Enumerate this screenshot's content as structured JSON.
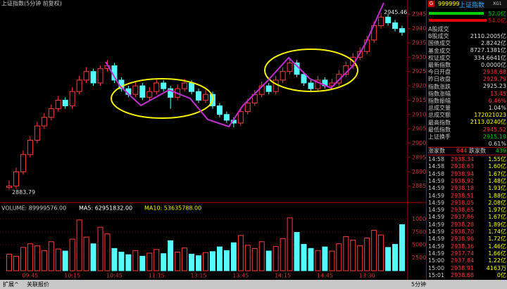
{
  "header": {
    "title": "上证指数(5分钟 前复权)"
  },
  "chart_data": [
    {
      "type": "candlestick",
      "open": [
        2884.5,
        2885,
        2890,
        2896,
        2901,
        2906,
        2909,
        2912,
        2915,
        2913,
        2918,
        2922,
        2925,
        2921,
        2926,
        2927,
        2922,
        2919,
        2917,
        2920,
        2916,
        2918,
        2921,
        2919,
        2916,
        2919,
        2921,
        2918,
        2915,
        2917,
        2913,
        2910,
        2908,
        2907,
        2911,
        2914,
        2917,
        2920,
        2918,
        2922,
        2925,
        2928,
        2924,
        2921,
        2919,
        2922,
        2920,
        2921,
        2924,
        2927,
        2930,
        2932,
        2936,
        2941,
        2944,
        2942,
        2940
      ],
      "high": [
        2887,
        2891.5,
        2897.5,
        2902.5,
        2907.5,
        2910.5,
        2913.5,
        2916.5,
        2916,
        2919.5,
        2923.5,
        2926.5,
        2926,
        2927,
        2929,
        2928,
        2923,
        2920,
        2921.5,
        2921,
        2919.5,
        2922.5,
        2922,
        2920,
        2920.5,
        2922.5,
        2922,
        2919,
        2918.5,
        2918,
        2914,
        2911,
        2909,
        2912.5,
        2915.5,
        2918.5,
        2921.5,
        2921,
        2923.5,
        2926.5,
        2929.5,
        2929,
        2925,
        2922,
        2923.5,
        2923,
        2922.5,
        2925.5,
        2928.5,
        2931.5,
        2933.5,
        2937.5,
        2942.5,
        2945.46,
        2945,
        2943,
        2941
      ],
      "low": [
        2883.79,
        2884,
        2889,
        2895,
        2900,
        2905,
        2908,
        2911,
        2912,
        2912,
        2917,
        2921,
        2920,
        2920,
        2925,
        2921,
        2918,
        2916,
        2916,
        2915,
        2915,
        2917,
        2918,
        2912,
        2915,
        2918,
        2917,
        2914,
        2914,
        2912,
        2909,
        2907,
        2905.5,
        2906,
        2910,
        2913,
        2916,
        2917,
        2917,
        2921,
        2924,
        2923,
        2920,
        2918,
        2918,
        2919,
        2919,
        2920,
        2923,
        2926,
        2929,
        2931,
        2935,
        2940,
        2941,
        2939,
        2937.5
      ],
      "close": [
        2885,
        2890,
        2896,
        2901,
        2906,
        2909,
        2912,
        2915,
        2913,
        2918,
        2922,
        2925,
        2921,
        2926,
        2927,
        2922,
        2919,
        2917,
        2920,
        2916,
        2918,
        2921,
        2919,
        2916,
        2919,
        2921,
        2918,
        2915,
        2917,
        2913,
        2910,
        2908,
        2907,
        2911,
        2914,
        2917,
        2920,
        2918,
        2922,
        2925,
        2928,
        2924,
        2921,
        2919,
        2922,
        2920,
        2921,
        2924,
        2927,
        2930,
        2932,
        2936,
        2941,
        2944,
        2942,
        2940,
        2938.68
      ],
      "ylim": [
        2880,
        2948
      ],
      "yticks": [
        2885,
        2890,
        2895,
        2900,
        2905,
        2910,
        2915,
        2920,
        2925,
        2930,
        2935,
        2940,
        2945
      ],
      "colors": {
        "up": "#ff3c3c",
        "down": "#54fcfc"
      },
      "annotations": [
        {
          "value": 2945.46,
          "label": "2945.46"
        },
        {
          "value": 2883.79,
          "label": "2883.79"
        }
      ]
    },
    {
      "type": "bar",
      "title": "VOLUME: 89999576.00",
      "ma5_label": "MA5: 62951832.00",
      "ma10_label": "MA10: 53635788.00",
      "values": [
        3200,
        2800,
        4500,
        5200,
        4800,
        3900,
        5600,
        4200,
        3800,
        6100,
        9800,
        6500,
        5200,
        8400,
        7100,
        4300,
        3600,
        3100,
        3900,
        2800,
        3400,
        4100,
        3300,
        5800,
        3600,
        4400,
        3200,
        2900,
        3500,
        3700,
        4600,
        3900,
        5400,
        6800,
        4900,
        4300,
        5600,
        3800,
        4700,
        6200,
        10200,
        7400,
        5100,
        4300,
        3900,
        4600,
        3800,
        5200,
        6600,
        5900,
        4800,
        6300,
        7800,
        6900,
        4500,
        5100,
        8900
      ],
      "categories": [
        null,
        null,
        null,
        "09:45",
        null,
        null,
        null,
        null,
        null,
        "10:15",
        null,
        null,
        null,
        null,
        null,
        "10:45",
        null,
        null,
        null,
        null,
        null,
        "11:15",
        null,
        null,
        null,
        null,
        null,
        "13:15",
        null,
        null,
        null,
        null,
        null,
        "13:45",
        null,
        null,
        null,
        null,
        null,
        "14:15",
        null,
        null,
        null,
        null,
        null,
        "14:45",
        null,
        null,
        null,
        null,
        null,
        "13:30",
        null,
        null,
        null,
        null,
        null
      ],
      "ylim": [
        0,
        11000
      ],
      "yticks": [
        2500,
        5000,
        7500,
        10000
      ],
      "grid": true
    }
  ],
  "quote": {
    "code": "999999",
    "name": "上证指数",
    "tag": "XG1",
    "icon": "G",
    "buy_bar": "52.0亿",
    "sell_bar": "54.0亿",
    "stats": [
      {
        "label": "A股成交",
        "value": "2110.2005亿"
      },
      {
        "label": "B股成交",
        "value": "2.8242亿"
      },
      {
        "label": "国债成交",
        "value": "8727.1381亿"
      },
      {
        "label": "基金成交",
        "value": "334.6641亿"
      },
      {
        "label": "权证成交",
        "value": "0.0000亿"
      },
      {
        "label": "最新指数",
        "value": "2938.68"
      },
      {
        "label": "今日开盘",
        "value": "2929.79"
      },
      {
        "label": "昨日收盘",
        "value": "2925.23"
      },
      {
        "label": "指数涨跌",
        "value": "13.45"
      },
      {
        "label": "指数涨幅",
        "value": "0.46%"
      },
      {
        "label": "指数振幅",
        "value": "1.04%"
      },
      {
        "label": "总成交量",
        "value": "172021023"
      },
      {
        "label": "总成交额",
        "value": "2113.0240亿"
      },
      {
        "label": "最高指数",
        "value": "2945.52"
      },
      {
        "label": "最低指数",
        "value": "2915.19"
      },
      {
        "label": "上证换手",
        "value": "0.61%"
      }
    ],
    "rise_label": "涨家数",
    "rise": "644",
    "fall_label": "跌家数",
    "fall": "439",
    "ticks": [
      [
        "14:58",
        "2938.34",
        "1.55亿"
      ],
      [
        "14:58",
        "2938.63",
        "1.60亿"
      ],
      [
        "14:58",
        "2938.94",
        "1.67亿"
      ],
      [
        "14:59",
        "2938.92",
        "1.48亿"
      ],
      [
        "14:59",
        "2938.18",
        "1.93亿"
      ],
      [
        "14:59",
        "2938.51",
        "1.88亿"
      ],
      [
        "14:59",
        "2938.05",
        "2.08亿"
      ],
      [
        "14:59",
        "2938.65",
        "1.97亿"
      ],
      [
        "14:59",
        "2937.86",
        "1.67亿"
      ],
      [
        "14:59",
        "2938.28",
        "1.89亿"
      ],
      [
        "14:59",
        "2938.70",
        "1.74亿"
      ],
      [
        "14:59",
        "2938.96",
        "1.72亿"
      ],
      [
        "14:59",
        "2938.36",
        "1.46亿"
      ],
      [
        "14:59",
        "2937.74",
        "1.66亿"
      ],
      [
        "15:00",
        "2937.84",
        "1.22亿"
      ],
      [
        "15:00",
        "2938.91",
        "4163万"
      ],
      [
        "15:01",
        "2938.68",
        "0亿"
      ]
    ]
  },
  "footer": {
    "tabs": [
      "扩展^",
      "关联报价"
    ],
    "period": "5分钟"
  }
}
